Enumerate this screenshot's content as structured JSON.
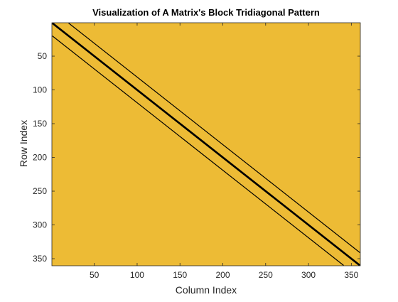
{
  "chart_data": {
    "type": "heatmap",
    "title": "Visualization of A Matrix's Block Tridiagonal Pattern",
    "xlabel": "Column Index",
    "ylabel": "Row Index",
    "xlim": [
      0.5,
      360.5
    ],
    "ylim": [
      0.5,
      360.5
    ],
    "y_reversed": true,
    "x_ticks": [
      50,
      100,
      150,
      200,
      250,
      300,
      350
    ],
    "y_ticks": [
      50,
      100,
      150,
      200,
      250,
      300,
      350
    ],
    "matrix_size": 360,
    "block_offset": 19,
    "background_color": "#EDBB35",
    "nonzero_color": "#000000",
    "diagonals": [
      {
        "name": "main-diagonal",
        "offset": 0
      },
      {
        "name": "super-diagonal-1",
        "offset": 1
      },
      {
        "name": "sub-diagonal-1",
        "offset": -1
      },
      {
        "name": "super-diagonal-block",
        "offset": 19
      },
      {
        "name": "sub-diagonal-block",
        "offset": -19
      }
    ],
    "grid": false,
    "legend": "none"
  }
}
